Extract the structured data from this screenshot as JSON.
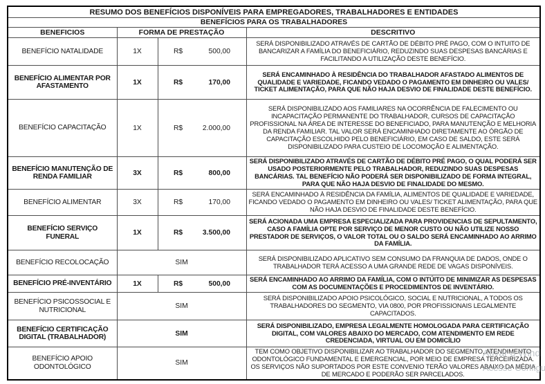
{
  "table": {
    "title": "RESUMO DOS BENEFÍCIOS DISPONÍVEIS PARA EMPREGADORES, TRABALHADORES E ENTIDADES",
    "subtitle": "BENEFÍCIOS PARA OS TRABALHADORES",
    "columns": [
      "BENEFICIOS",
      "FORMA DE PRESTAÇÃO",
      "DESCRITIVO"
    ],
    "rows": [
      {
        "name": "BENEFÍCIO NATALIDADE",
        "forma": "1X",
        "moeda": "R$",
        "valor": "500,00",
        "bold": false,
        "descritivo": "SERÁ DISPONIBILIZADO ATRAVÉS DE CARTÃO DE DÉBITO PRÉ PAGO, COM O INTUITO DE BANCARIZAR A FAMÍLIA DO BENEFICIÁRIO, REDUZINDO SUAS DESPESAS BANCÁRIAS E FACILITANDO A UTILIZAÇÃO DESTE BENEFÍCIO."
      },
      {
        "name": "BENEFÍCIO ALIMENTAR POR AFASTAMENTO",
        "forma": "1X",
        "moeda": "R$",
        "valor": "170,00",
        "bold": true,
        "descritivo": "SERÁ ENCAMINHADO À RESIDÊNCIA DO TRABALHADOR AFASTADO ALIMENTOS DE QUALIDADE E VARIEDADE, FICANDO VEDADO O PAGAMENTO EM DINHEIRO OU VALES/ TICKET ALIMENTAÇÃO, PARA QUE NÃO HAJA DESVIO DE FINALIDADE DESTE BENEFÍCIO."
      },
      {
        "name": "BENEFÍCIO CAPACITAÇÃO",
        "forma": "1X",
        "moeda": "R$",
        "valor": "2.000,00",
        "bold": false,
        "descritivo": "SERÁ DISPONIBILIZADO AOS FAMILIARES NA OCORRÊNCIA DE FALECIMENTO OU INCAPACITAÇÃO PERMANENTE DO TRABALHADOR, CURSOS DE CAPACITAÇÃO PROFISSIONAL NA ÁREA DE INTERESSE DO BENEFICIADO, PARA MANUTENÇÃO E MELHORIA DA RENDA FAMILIAR. TAL VALOR SERÁ ENCAMINHADO DIRETAMENTE AO ÓRGÃO DE CAPACITAÇÃO ESCOLHIDO PELO BENEFICIÁRIO, EM CASO DE SALDO, ESTE SERÁ DISPONIBILIZADO PARA CUSTEIO DE LOCOMOÇÃO E ALIMENTAÇÃO."
      },
      {
        "name": "BENEFÍCIO MANUTENÇÃO DE RENDA FAMILIAR",
        "forma": "3X",
        "moeda": "R$",
        "valor": "800,00",
        "bold": true,
        "descritivo": "SERÁ DISPONIBILIZADO ATRAVÉS DE CARTÃO DE DÉBITO PRÉ PAGO, O QUAL PODERÁ SER USADO POSTERIORMENTE PELO TRABALHADOR, REDUZINDO SUAS DESPESAS BANCÁRIAS. TAL BENEFÍCIO NÃO PODERÁ SER DISPONIBILIZADO DE FORMA INTEGRAL, PARA QUE NÃO HAJA DESVIO DE FINALIDADE DO MESMO."
      },
      {
        "name": "BENEFÍCIO ALIMENTAR",
        "forma": "3X",
        "moeda": "R$",
        "valor": "170,00",
        "bold": false,
        "descritivo": "SERÁ ENCAMINHADO À RESIDÊNCIA DA FAMÍLIA, ALIMENTOS DE QUALIDADE E VARIEDADE, FICANDO VEDADO O PAGAMENTO EM DINHEIRO OU VALES/ TICKET ALIMENTAÇÃO, PARA QUE NÃO HAJA DESVIO DE FINALIDADE DESTE BENEFÍCIO."
      },
      {
        "name": "BENEFÍCIO SERVIÇO FUNERAL",
        "forma": "1X",
        "moeda": "R$",
        "valor": "3.500,00",
        "bold": true,
        "descritivo": "SERÁ ACIONADA UMA EMPRESA ESPECIALIZADA PARA PROVIDENCIAS DE SEPULTAMENTO, CASO A FAMÍLIA OPTE POR SERVIÇO DE MENOR CUSTO OU NÃO UTILIZE NOSSO PRESTADOR DE SERVIÇOS, O VALOR TOTAL OU O SALDO SERÁ ENCAMINHADO AO ARRIMO DA FAMÍLIA."
      },
      {
        "name": "BENEFÍCIO RECOLOCAÇÃO",
        "forma": "SIM",
        "moeda": null,
        "valor": null,
        "bold": false,
        "descritivo": "SERÁ DISPONIBILIZADO APLICATIVO SEM CONSUMO DA FRANQUIA DE DADOS, ONDE O TRABALHADOR TERÁ ACESSO A UMA GRANDE REDE DE VAGAS DISPONÍVEIS."
      },
      {
        "name": "BENEFÍCIO PRÉ-INVENTÁRIO",
        "forma": "1X",
        "moeda": "R$",
        "valor": "500,00",
        "bold": true,
        "descritivo": "SERÁ ENCAMINHADO AO ARRIMO DA FAMÍLIA, COM O INTÚITO DE MINIMIZAR AS DESPESAS COM AS DOCUMENTAÇÕES E PROCEDIMENTOS DE INVENTÁRIO."
      },
      {
        "name": "BENEFÍCIO PSICOSSOCIAL E NUTRICIONAL",
        "forma": "SIM",
        "moeda": null,
        "valor": null,
        "bold": false,
        "descritivo": "SERÁ DISPONIBILIZADO APOIO PSICOLÓGICO, SOCIAL E NUTRICIONAL, A TODOS OS TRABALHADORES DO SEGMENTO, VIA 0800, POR PROFISSIONAIS LEGALMENTE CAPACITADOS."
      },
      {
        "name": "BENEFÍCIO CERTIFICAÇÃO DIGITAL (TRABALHADOR)",
        "forma": "SIM",
        "moeda": null,
        "valor": null,
        "bold": true,
        "descritivo": "SERÁ DISPONIBILIZADO, EMPRESA LEGALMENTE HOMOLOGADA PARA CERTIFICAÇÃO DIGITAL, COM VALORES ABAIXO DO MERCADO, COM ATENDIMENTO EM REDE CREDENCIADA, VIRTUAL OU EM DOMICÍLIO"
      },
      {
        "name": "BENEFÍCIO APOIO ODONTOLÓGICO",
        "forma": "SIM",
        "moeda": null,
        "valor": null,
        "bold": false,
        "descritivo": "TEM COMO OBJETIVO DISPONIBILIZAR AO TRABALHADOR DO SEGMENTO, ATENDIMENTO ODONTOLÓGICO FUNDAMENTAL E EMERGENCIAL, POR MEIO DE EMPRESA TERCEIRIZADA. OS SERVIÇOS NÃO SUPORTADOS POR ESTE CONVENIO TERÃO VALORES ABAIXO DA MÉDIA DE MERCADO E PODERÃO SER PARCELADOS."
      }
    ]
  },
  "watermark": {
    "line1": "Ativar o Wind",
    "line2": "Acesse Configuraç"
  }
}
